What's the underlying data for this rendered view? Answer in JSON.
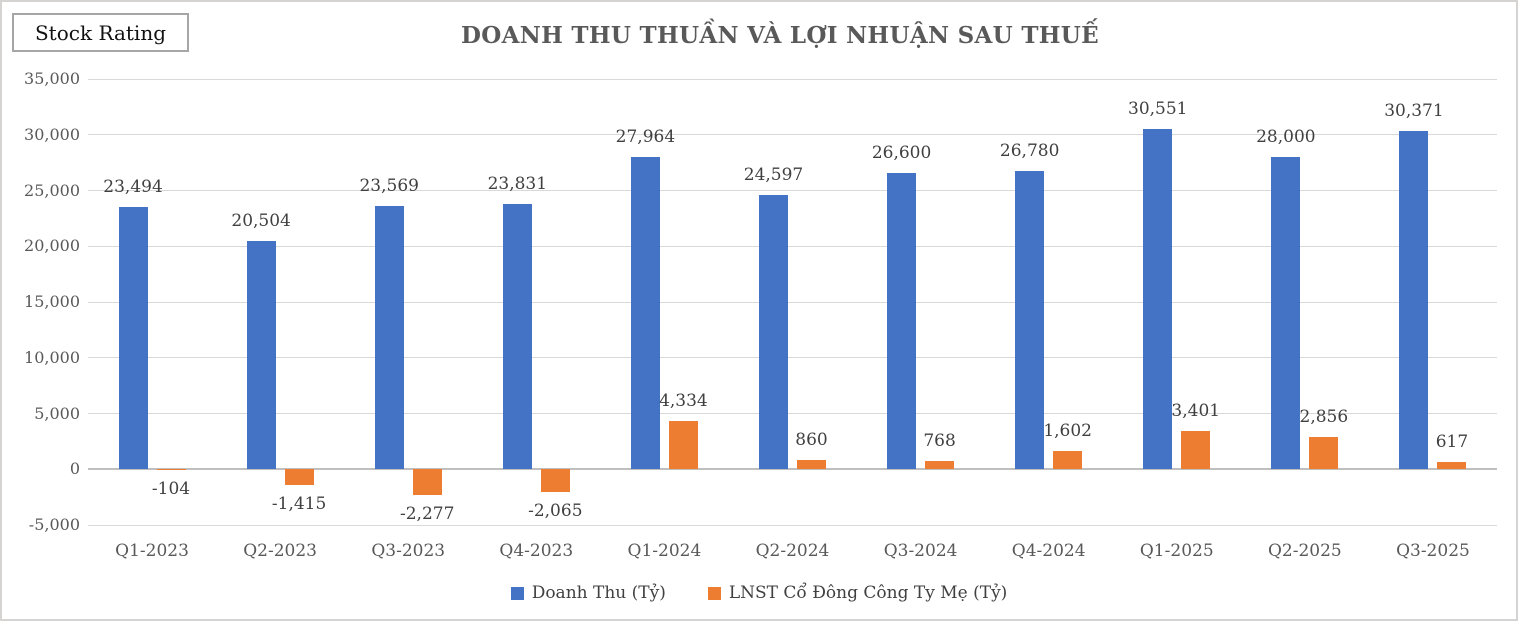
{
  "stock_rating": {
    "label": "Stock Rating"
  },
  "chart_data": {
    "type": "bar",
    "title": "DOANH THU THUẦN VÀ LỢI NHUẬN SAU THUẾ",
    "categories": [
      "Q1-2023",
      "Q2-2023",
      "Q3-2023",
      "Q4-2023",
      "Q1-2024",
      "Q2-2024",
      "Q3-2024",
      "Q4-2024",
      "Q1-2025",
      "Q2-2025",
      "Q3-2025"
    ],
    "series": [
      {
        "name": "Doanh Thu (Tỷ)",
        "color": "#4472C4",
        "values": [
          23494,
          20504,
          23569,
          23831,
          27964,
          24597,
          26600,
          26780,
          30551,
          28000,
          30371
        ]
      },
      {
        "name": "LNST Cổ Đông Công Ty Mẹ (Tỷ)",
        "color": "#ED7D31",
        "values": [
          -104,
          -1415,
          -2277,
          -2065,
          4334,
          860,
          768,
          1602,
          3401,
          2856,
          617
        ]
      }
    ],
    "ylim": [
      -5000,
      35000
    ],
    "ytick_step": 5000,
    "ytick_labels": [
      "35,000",
      "30,000",
      "25,000",
      "20,000",
      "15,000",
      "10,000",
      "5,000",
      "0",
      "-5,000"
    ],
    "grid": true,
    "data_labels": true,
    "legend_position": "bottom",
    "colors": {
      "gridline": "#d9d9d9",
      "zero_axis": "#bfbfbf",
      "axis_text": "#595959",
      "label_text": "#404040",
      "title_text": "#595959"
    }
  }
}
